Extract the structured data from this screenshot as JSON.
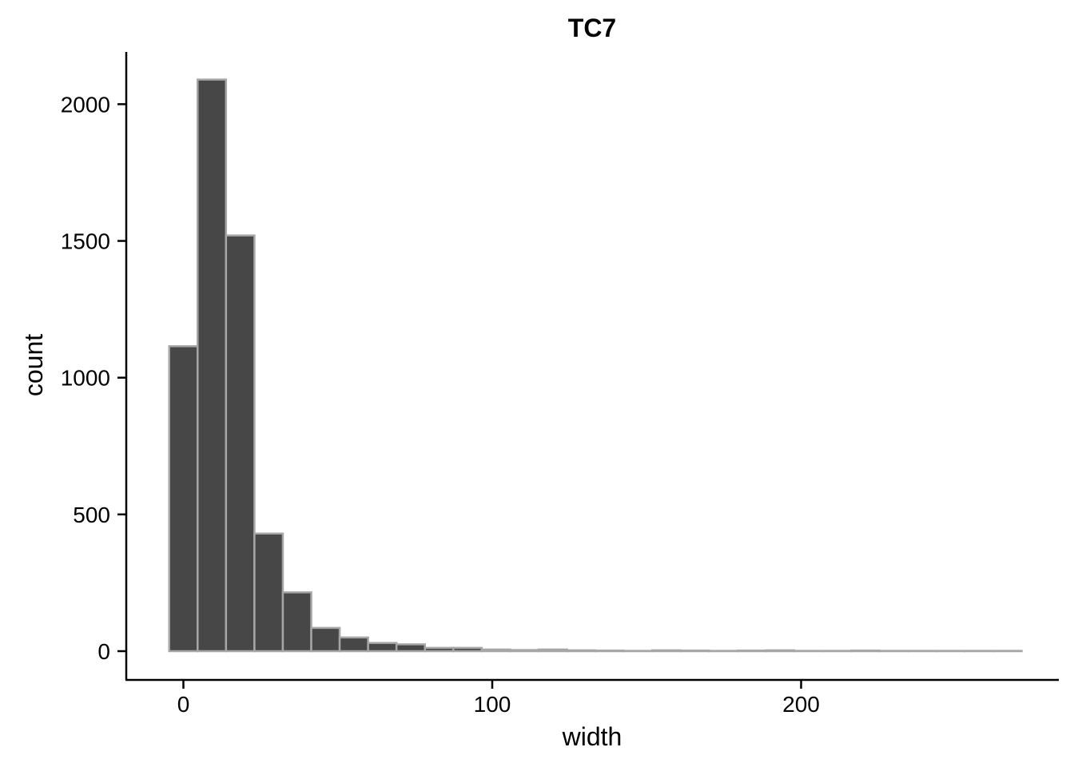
{
  "chart_data": {
    "type": "bar",
    "title": "TC7",
    "xlabel": "width",
    "ylabel": "count",
    "xlim": [
      -5,
      272
    ],
    "ylim": [
      0,
      2200
    ],
    "bin_width": 9.2,
    "bin_centers": [
      0,
      9.2,
      18.4,
      27.6,
      36.8,
      46,
      55.2,
      64.4,
      73.6,
      82.8,
      92,
      101.2,
      110.4,
      119.6,
      128.8,
      138,
      147.2,
      156.4,
      165.6,
      174.8,
      184,
      193.2,
      202.4,
      211.6,
      220.8,
      230,
      239.2,
      248.4,
      257.6,
      266.8
    ],
    "values": [
      1115,
      2090,
      1520,
      430,
      215,
      85,
      50,
      30,
      25,
      12,
      12,
      6,
      4,
      6,
      3,
      2,
      1,
      3,
      2,
      1,
      2,
      3,
      1,
      1,
      2,
      1,
      1,
      1,
      1,
      1
    ],
    "x_ticks": [
      0,
      100,
      200
    ],
    "y_ticks": [
      0,
      500,
      1000,
      1500,
      2000
    ],
    "grid": false,
    "legend": "none",
    "colors": {
      "bar_fill": "#474747",
      "bar_stroke": "#a6a6a6",
      "axis": "#000000"
    }
  }
}
